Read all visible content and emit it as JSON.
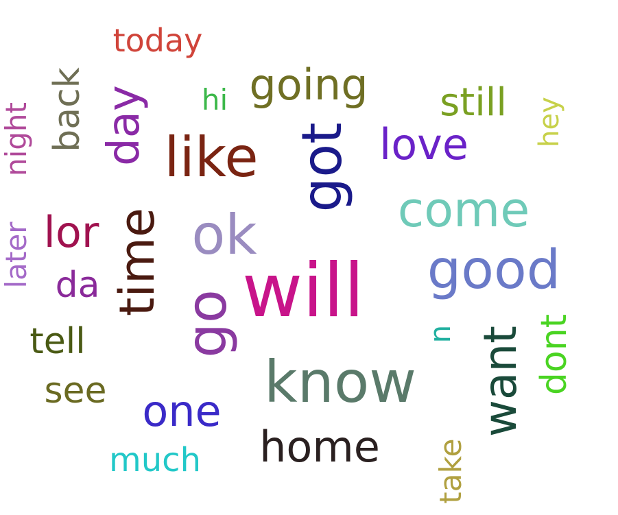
{
  "words": {
    "today": {
      "text": "today",
      "color": "#d0443a"
    },
    "going": {
      "text": "going",
      "color": "#6f6f24"
    },
    "hi": {
      "text": "hi",
      "color": "#3cb84a"
    },
    "still": {
      "text": "still",
      "color": "#7aa022"
    },
    "hey": {
      "text": "hey",
      "color": "#c7d14a"
    },
    "back": {
      "text": "back",
      "color": "#6f6f55"
    },
    "day": {
      "text": "day",
      "color": "#8a2aa6"
    },
    "night": {
      "text": "night",
      "color": "#b04a9a"
    },
    "like": {
      "text": "like",
      "color": "#7a2412"
    },
    "got": {
      "text": "got",
      "color": "#1a1a8a"
    },
    "love": {
      "text": "love",
      "color": "#6a22c8"
    },
    "come": {
      "text": "come",
      "color": "#6fcab8"
    },
    "lor": {
      "text": "lor",
      "color": "#a0124f"
    },
    "ok": {
      "text": "ok",
      "color": "#9a8cc0"
    },
    "time": {
      "text": "time",
      "color": "#4a1a10"
    },
    "later": {
      "text": "later",
      "color": "#a46ac8"
    },
    "good": {
      "text": "good",
      "color": "#6a7ac8"
    },
    "da": {
      "text": "da",
      "color": "#8a2a9a"
    },
    "will": {
      "text": "will",
      "color": "#c8148a"
    },
    "go": {
      "text": "go",
      "color": "#8a3aa0"
    },
    "n": {
      "text": "n",
      "color": "#22b0a0"
    },
    "tell": {
      "text": "tell",
      "color": "#4a5a14"
    },
    "dont": {
      "text": "dont",
      "color": "#4ad422"
    },
    "want": {
      "text": "want",
      "color": "#1a4a3a"
    },
    "know": {
      "text": "know",
      "color": "#5a7a6a"
    },
    "see": {
      "text": "see",
      "color": "#6a6a22"
    },
    "one": {
      "text": "one",
      "color": "#3a2ac8"
    },
    "home": {
      "text": "home",
      "color": "#2a2020"
    },
    "much": {
      "text": "much",
      "color": "#22c8c8"
    },
    "take": {
      "text": "take",
      "color": "#b0a040"
    }
  }
}
